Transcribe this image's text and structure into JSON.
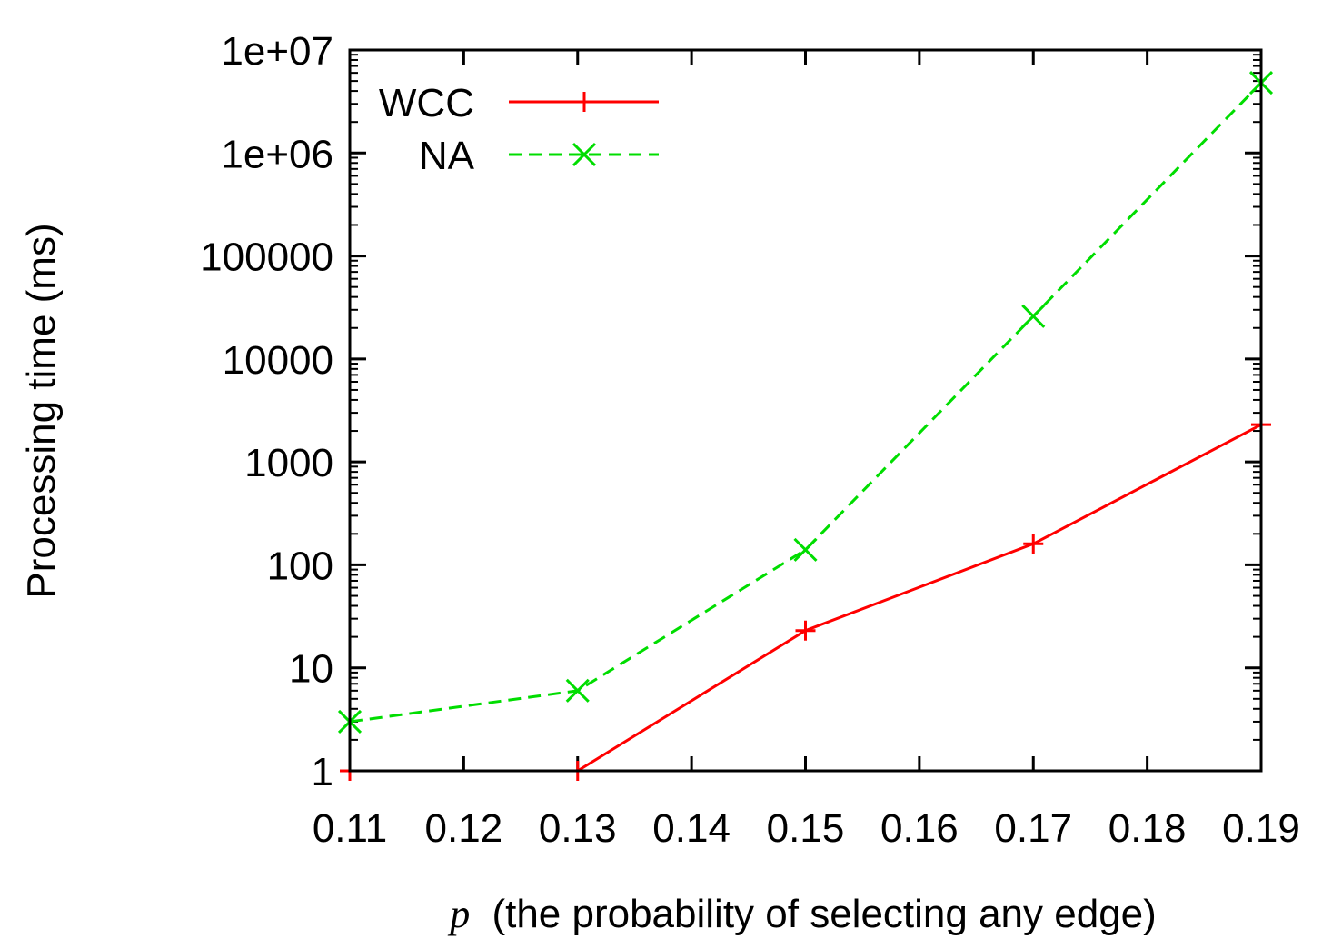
{
  "chart_data": {
    "type": "line",
    "title": "",
    "xlabel_symbol": "p",
    "xlabel": "(the probability of selecting any edge)",
    "ylabel": "Processing time (ms)",
    "yscale": "log",
    "xlim": [
      0.11,
      0.19
    ],
    "ylim": [
      1,
      10000000
    ],
    "x_ticks": [
      "0.11",
      "0.12",
      "0.13",
      "0.14",
      "0.15",
      "0.16",
      "0.17",
      "0.18",
      "0.19"
    ],
    "y_ticks": [
      "1",
      "10",
      "100",
      "1000",
      "10000",
      "100000",
      "1e+06",
      "1e+07"
    ],
    "legend_position": "top-left",
    "series": [
      {
        "name": "WCC",
        "color": "#ff0000",
        "style": "solid",
        "marker": "plus",
        "x": [
          0.11,
          0.13,
          0.15,
          0.17,
          0.19
        ],
        "values": [
          1,
          1,
          23,
          160,
          2300
        ]
      },
      {
        "name": "NA",
        "color": "#00dd00",
        "style": "dashed",
        "marker": "cross",
        "x": [
          0.11,
          0.13,
          0.15,
          0.17,
          0.19
        ],
        "values": [
          3,
          6,
          140,
          26000,
          4800000
        ]
      }
    ]
  }
}
